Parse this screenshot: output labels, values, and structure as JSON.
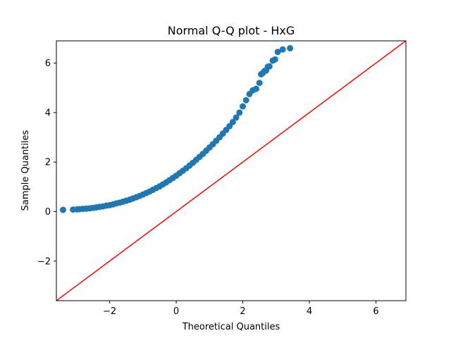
{
  "chart_data": {
    "type": "scatter",
    "title": "Normal Q-Q plot - HxG",
    "xlabel": "Theoretical Quantiles",
    "ylabel": "Sample Quantiles",
    "xlim": [
      -3.6,
      6.9
    ],
    "ylim": [
      -3.6,
      6.9
    ],
    "xticks": [
      -2,
      0,
      2,
      4,
      6
    ],
    "yticks": [
      -2,
      0,
      2,
      4,
      6
    ],
    "xtick_labels": [
      "−2",
      "0",
      "2",
      "4",
      "6"
    ],
    "ytick_labels": [
      "−2",
      "0",
      "2",
      "4",
      "6"
    ],
    "grid": false,
    "series": [
      {
        "kind": "points",
        "color": "#1f77b4",
        "x": [
          -3.4,
          -3.1,
          -2.98,
          -2.9,
          -2.8,
          -2.7,
          -2.6,
          -2.5,
          -2.4,
          -2.3,
          -2.2,
          -2.1,
          -2.0,
          -1.9,
          -1.8,
          -1.7,
          -1.6,
          -1.5,
          -1.4,
          -1.3,
          -1.2,
          -1.1,
          -1.0,
          -0.9,
          -0.8,
          -0.7,
          -0.6,
          -0.5,
          -0.4,
          -0.3,
          -0.2,
          -0.1,
          0.0,
          0.1,
          0.2,
          0.3,
          0.4,
          0.5,
          0.6,
          0.7,
          0.8,
          0.9,
          1.0,
          1.1,
          1.2,
          1.3,
          1.4,
          1.5,
          1.6,
          1.7,
          1.8,
          1.9,
          2.0,
          2.1,
          2.2,
          2.3,
          2.4,
          2.5,
          2.55,
          2.6,
          2.65,
          2.7,
          2.75,
          2.8,
          2.9,
          2.97,
          3.05,
          3.2,
          3.42
        ],
        "y": [
          0.07,
          0.08,
          0.09,
          0.1,
          0.11,
          0.12,
          0.13,
          0.15,
          0.17,
          0.19,
          0.21,
          0.24,
          0.26,
          0.29,
          0.33,
          0.36,
          0.4,
          0.44,
          0.48,
          0.53,
          0.58,
          0.63,
          0.69,
          0.75,
          0.81,
          0.88,
          0.95,
          1.02,
          1.1,
          1.18,
          1.27,
          1.36,
          1.45,
          1.55,
          1.65,
          1.75,
          1.86,
          1.97,
          2.09,
          2.21,
          2.33,
          2.46,
          2.59,
          2.72,
          2.86,
          3.0,
          3.15,
          3.3,
          3.45,
          3.62,
          3.8,
          4.0,
          4.25,
          4.5,
          4.75,
          4.9,
          4.96,
          5.2,
          5.55,
          5.6,
          5.68,
          5.7,
          5.85,
          5.87,
          6.1,
          6.15,
          6.45,
          6.55,
          6.6
        ]
      },
      {
        "kind": "reference-line",
        "color": "#ff0000",
        "x": [
          -3.6,
          6.9
        ],
        "y": [
          -3.6,
          6.9
        ]
      }
    ]
  }
}
